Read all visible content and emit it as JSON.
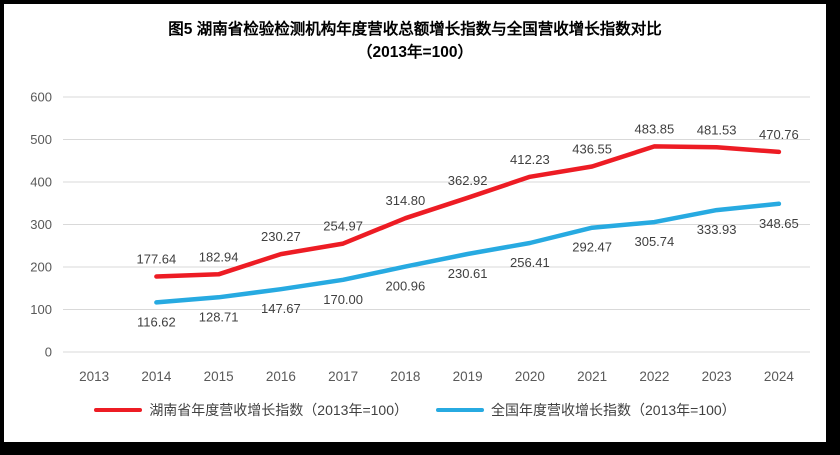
{
  "frame": {
    "background": "#ffffff",
    "border_color": "#000000"
  },
  "title": {
    "line1": "图5 湖南省检验检测机构年度营收总额增长指数与全国营收增长指数对比",
    "line2": "（2013年=100）"
  },
  "chart_data": {
    "type": "line",
    "title": "图5 湖南省检验检测机构年度营收总额增长指数与全国营收增长指数对比（2013年=100）",
    "categories": [
      "2013",
      "2014",
      "2015",
      "2016",
      "2017",
      "2018",
      "2019",
      "2020",
      "2021",
      "2022",
      "2023",
      "2024"
    ],
    "series": [
      {
        "name": "湖南省年度营收增长指数（2013年=100）",
        "color": "#ed1c24",
        "label_position": "above",
        "values": [
          null,
          177.64,
          182.94,
          230.27,
          254.97,
          314.8,
          362.92,
          412.23,
          436.55,
          483.85,
          481.53,
          470.76
        ]
      },
      {
        "name": "全国年度营收增长指数（2013年=100）",
        "color": "#27aae1",
        "label_position": "below",
        "values": [
          null,
          116.62,
          128.71,
          147.67,
          170.0,
          200.96,
          230.61,
          256.41,
          292.47,
          305.74,
          333.93,
          348.65
        ]
      }
    ],
    "ylim": [
      0,
      600
    ],
    "ytick_step": 100,
    "grid": true,
    "legend_position": "bottom",
    "gridline_color": "#d9d9d9",
    "axis_label_color": "#595959",
    "data_label_color": "#404040",
    "decimals": 2
  }
}
